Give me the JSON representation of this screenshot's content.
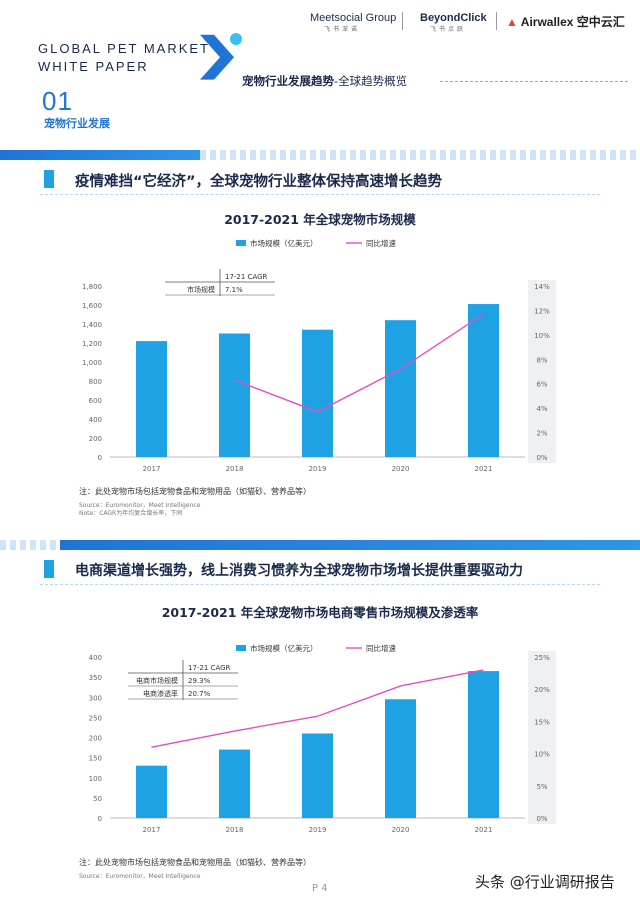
{
  "header": {
    "title_line1": "GLOBAL PET MARKET",
    "title_line2": "WHITE PAPER",
    "logos": [
      {
        "name": "Meetsocial Group",
        "sub": "飞书深诺"
      },
      {
        "name": "BeyondClick",
        "sub": "飞书点跃"
      },
      {
        "name": "Airwallex 空中云汇",
        "sub": ""
      }
    ],
    "section_number": "01",
    "section_label": "宠物行业发展",
    "breadcrumb_main": "宠物行业发展趋势",
    "breadcrumb_sub": "-全球趋势概览"
  },
  "section1": {
    "heading": "疫情难挡“它经济”，全球宠物行业整体保持高速增长趋势",
    "note": "注：此处宠物市场包括宠物食品和宠物用品（如猫砂、营养品等）",
    "source": "Source：Euromonitor，Meet Intelligence",
    "note2": "Note：CAGR为年均复合增长率，下同"
  },
  "section2": {
    "heading": "电商渠道增长强势，线上消费习惯养为全球宠物市场增长提供重要驱动力",
    "note": "注：此处宠物市场包括宠物食品和宠物用品（如猫砂、营养品等）",
    "source": "Source：Euromonitor，Meet Intelligence"
  },
  "footer": {
    "page": "P 4",
    "watermark": "头条 @行业调研报告"
  },
  "chart_data": [
    {
      "type": "bar",
      "title": "2017-2021 年全球宠物市场规模",
      "categories": [
        "2017",
        "2018",
        "2019",
        "2020",
        "2021"
      ],
      "series": [
        {
          "name": "市场规模（亿美元）",
          "type": "bar",
          "axis": "left",
          "values": [
            1220,
            1300,
            1340,
            1440,
            1610
          ]
        },
        {
          "name": "同比增速",
          "type": "line",
          "axis": "right",
          "values": [
            null,
            6.3,
            3.7,
            7.2,
            11.7
          ]
        }
      ],
      "y_left": {
        "min": 0,
        "max": 1800,
        "ticks": [
          "0",
          "200",
          "400",
          "600",
          "800",
          "1,000",
          "1,200",
          "1,400",
          "1,600",
          "1,800"
        ]
      },
      "y_right": {
        "min": 0,
        "max": 14,
        "ticks": [
          "0%",
          "2%",
          "4%",
          "6%",
          "8%",
          "10%",
          "12%",
          "14%"
        ]
      },
      "legend_position": "top",
      "inset_table": {
        "header": "17-21 CAGR",
        "rows": [
          {
            "label": "市场规模",
            "value": "7.1%"
          }
        ]
      },
      "colors": {
        "bar": "#1ea2e4",
        "line": "#e34fc3"
      }
    },
    {
      "type": "bar",
      "title": "2017-2021 年全球宠物市场电商零售市场规模及渗透率",
      "categories": [
        "2017",
        "2018",
        "2019",
        "2020",
        "2021"
      ],
      "series": [
        {
          "name": "市场规模（亿美元）",
          "type": "bar",
          "axis": "left",
          "values": [
            130,
            170,
            210,
            295,
            365
          ]
        },
        {
          "name": "同比增速",
          "type": "line",
          "axis": "right",
          "values": [
            11,
            13.5,
            15.8,
            20.5,
            23
          ]
        }
      ],
      "y_left": {
        "min": 0,
        "max": 400,
        "ticks": [
          "0",
          "50",
          "100",
          "150",
          "200",
          "250",
          "300",
          "350",
          "400"
        ]
      },
      "y_right": {
        "min": 0,
        "max": 25,
        "ticks": [
          "0%",
          "5%",
          "10%",
          "15%",
          "20%",
          "25%"
        ]
      },
      "legend_position": "top",
      "inset_table": {
        "header": "17-21 CAGR",
        "rows": [
          {
            "label": "电商市场规模",
            "value": "29.3%"
          },
          {
            "label": "电商渗透率",
            "value": "20.7%"
          }
        ]
      },
      "colors": {
        "bar": "#1ea2e4",
        "line": "#e34fc3"
      }
    }
  ]
}
